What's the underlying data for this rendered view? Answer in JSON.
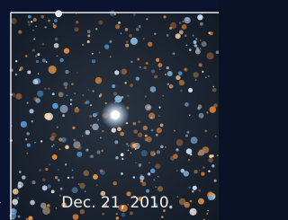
{
  "image": {
    "caption": "Dec. 21, 2010"
  }
}
